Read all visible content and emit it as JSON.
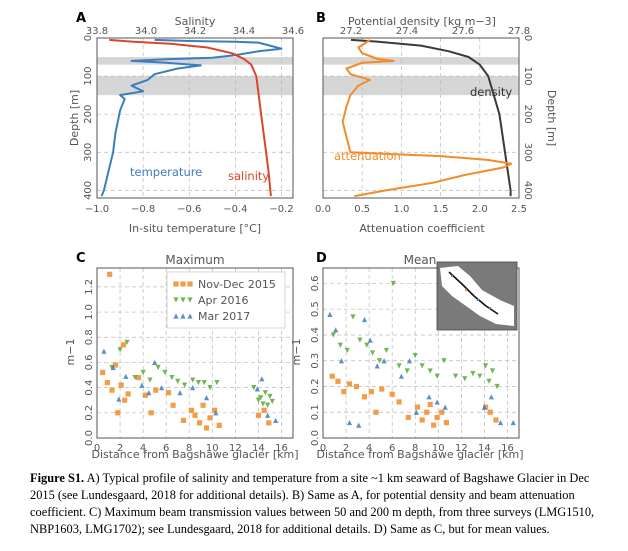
{
  "caption": {
    "label": "Figure S1.",
    "text": "A) Typical profile of salinity and temperature from a site ~1 km seaward of Bagshawe Glacier in Dec 2015 (see Lundesgaard, 2018 for additional details). B) Same as A, for potential density and beam attenuation coefficient. C) Maximum beam transmission values between 50 and 200 m depth, from three surveys (LMG1510, NBP1603, LMG1702); see Lundesgaard, 2018 for additional details. D) Same as C, but for mean values."
  },
  "colors": {
    "temperature": "#3b7dbf",
    "salinity": "#d9462b",
    "density": "#3a3a3a",
    "attenuation": "#f28c28",
    "nov_dec_2015": "#f28c28",
    "apr_2016": "#5aa832",
    "mar_2017": "#3f7cc4",
    "band": "#d6d6d6",
    "axis_gray": "#555555"
  },
  "chart_data": [
    {
      "id": "A",
      "panel_label": "A",
      "type": "line",
      "title": "",
      "top_axis_label": "Salinity",
      "top_ticks": [
        "33.8",
        "34.0",
        "34.2",
        "34.4",
        "34.6"
      ],
      "top_range": [
        33.8,
        34.6
      ],
      "bottom_axis_label": "In-situ temperature [°C]",
      "bottom_ticks": [
        "−1.0",
        "−0.8",
        "−0.6",
        "−0.4",
        "−0.2"
      ],
      "bottom_range": [
        -1.0,
        -0.15
      ],
      "ylabel": "Depth [m]",
      "y_ticks": [
        "0",
        "100",
        "200",
        "300",
        "400"
      ],
      "ylim": [
        0,
        420
      ],
      "shaded_bands": [
        [
          50,
          70
        ],
        [
          100,
          150
        ]
      ],
      "series": [
        {
          "name": "temperature",
          "axis": "bottom",
          "points": [
            [
              -0.75,
              5
            ],
            [
              -0.6,
              8
            ],
            [
              -0.4,
              10
            ],
            [
              -0.3,
              12
            ],
            [
              -0.25,
              20
            ],
            [
              -0.2,
              28
            ],
            [
              -0.3,
              35
            ],
            [
              -0.4,
              45
            ],
            [
              -0.5,
              52
            ],
            [
              -0.7,
              56
            ],
            [
              -0.85,
              60
            ],
            [
              -0.7,
              65
            ],
            [
              -0.55,
              72
            ],
            [
              -0.65,
              80
            ],
            [
              -0.75,
              95
            ],
            [
              -0.78,
              110
            ],
            [
              -0.85,
              125
            ],
            [
              -0.8,
              140
            ],
            [
              -0.9,
              150
            ],
            [
              -0.88,
              160
            ],
            [
              -0.9,
              190
            ],
            [
              -0.92,
              250
            ],
            [
              -0.93,
              300
            ],
            [
              -0.95,
              350
            ],
            [
              -0.97,
              400
            ],
            [
              -0.98,
              415
            ]
          ]
        },
        {
          "name": "salinity",
          "axis": "top",
          "points": [
            [
              33.85,
              5
            ],
            [
              33.95,
              10
            ],
            [
              34.1,
              15
            ],
            [
              34.25,
              25
            ],
            [
              34.35,
              40
            ],
            [
              34.4,
              55
            ],
            [
              34.43,
              70
            ],
            [
              34.45,
              100
            ],
            [
              34.46,
              150
            ],
            [
              34.47,
              200
            ],
            [
              34.48,
              250
            ],
            [
              34.49,
              300
            ],
            [
              34.5,
              350
            ],
            [
              34.51,
              415
            ]
          ]
        }
      ],
      "annotations": [
        "temperature",
        "salinity"
      ]
    },
    {
      "id": "B",
      "panel_label": "B",
      "type": "line",
      "title": "",
      "top_axis_label": "Potential density [kg m−3]",
      "top_ticks": [
        "27.2",
        "27.4",
        "27.6",
        "27.8"
      ],
      "top_range": [
        27.1,
        27.8
      ],
      "bottom_axis_label": "Attenuation coefficient",
      "bottom_ticks": [
        "0.0",
        "0.5",
        "1.0",
        "1.5",
        "2.0",
        "2.5"
      ],
      "bottom_range": [
        0.0,
        2.5
      ],
      "ylabel_right": "Depth [m]",
      "y_ticks": [
        "0",
        "100",
        "200",
        "300",
        "400"
      ],
      "ylim": [
        0,
        420
      ],
      "shaded_bands": [
        [
          50,
          70
        ],
        [
          100,
          150
        ]
      ],
      "series": [
        {
          "name": "density",
          "axis": "top",
          "points": [
            [
              27.2,
              5
            ],
            [
              27.3,
              10
            ],
            [
              27.45,
              20
            ],
            [
              27.55,
              35
            ],
            [
              27.62,
              50
            ],
            [
              27.66,
              70
            ],
            [
              27.69,
              100
            ],
            [
              27.71,
              150
            ],
            [
              27.73,
              200
            ],
            [
              27.74,
              250
            ],
            [
              27.75,
              300
            ],
            [
              27.76,
              350
            ],
            [
              27.77,
              400
            ],
            [
              27.77,
              415
            ]
          ]
        },
        {
          "name": "attenuation",
          "axis": "bottom",
          "points": [
            [
              0.6,
              5
            ],
            [
              0.45,
              25
            ],
            [
              0.5,
              40
            ],
            [
              0.7,
              55
            ],
            [
              0.9,
              60
            ],
            [
              0.5,
              65
            ],
            [
              0.3,
              80
            ],
            [
              0.35,
              95
            ],
            [
              0.6,
              110
            ],
            [
              0.45,
              125
            ],
            [
              0.35,
              150
            ],
            [
              0.3,
              180
            ],
            [
              0.25,
              220
            ],
            [
              0.3,
              260
            ],
            [
              0.35,
              300
            ],
            [
              1.5,
              310
            ],
            [
              2.1,
              320
            ],
            [
              2.4,
              330
            ],
            [
              2.3,
              340
            ],
            [
              1.8,
              360
            ],
            [
              1.4,
              380
            ],
            [
              0.8,
              400
            ],
            [
              0.4,
              415
            ]
          ]
        }
      ],
      "annotations": [
        "density",
        "attenuation"
      ]
    },
    {
      "id": "C",
      "panel_label": "C",
      "type": "scatter",
      "title": "Maximum",
      "xlabel": "Distance from Bagshawe glacier [km]",
      "ylabel": "m−1",
      "x_ticks": [
        "0",
        "2",
        "4",
        "6",
        "8",
        "10",
        "12",
        "14",
        "16"
      ],
      "xlim": [
        0,
        17
      ],
      "y_ticks": [
        "0.0",
        "0.2",
        "0.4",
        "0.6",
        "0.8",
        "1.0",
        "1.2"
      ],
      "ylim": [
        0,
        1.35
      ],
      "legend": {
        "placement": "top-right",
        "entries": [
          "Nov-Dec 2015",
          "Apr 2016",
          "Mar 2017"
        ]
      },
      "series": [
        {
          "name": "Nov-Dec 2015",
          "marker": "square",
          "points": [
            [
              1.1,
              1.3
            ],
            [
              0.5,
              0.52
            ],
            [
              0.9,
              0.44
            ],
            [
              1.3,
              0.38
            ],
            [
              1.6,
              0.58
            ],
            [
              2.1,
              0.42
            ],
            [
              2.3,
              0.74
            ],
            [
              2.7,
              0.35
            ],
            [
              1.8,
              0.2
            ],
            [
              2.4,
              0.3
            ],
            [
              3.6,
              0.48
            ],
            [
              4.2,
              0.34
            ],
            [
              4.7,
              0.2
            ],
            [
              5.1,
              0.38
            ],
            [
              6.2,
              0.36
            ],
            [
              6.6,
              0.26
            ],
            [
              7.5,
              0.14
            ],
            [
              8.2,
              0.22
            ],
            [
              8.5,
              0.18
            ],
            [
              8.9,
              0.12
            ],
            [
              9.2,
              0.26
            ],
            [
              9.5,
              0.08
            ],
            [
              9.8,
              0.16
            ],
            [
              10.2,
              0.22
            ],
            [
              10.6,
              0.1
            ],
            [
              14.0,
              0.18
            ],
            [
              14.5,
              0.22
            ],
            [
              14.9,
              0.12
            ]
          ]
        },
        {
          "name": "Apr 2016",
          "marker": "triangle-down",
          "points": [
            [
              1.3,
              0.56
            ],
            [
              2.0,
              0.7
            ],
            [
              2.6,
              0.76
            ],
            [
              3.3,
              0.48
            ],
            [
              4.0,
              0.52
            ],
            [
              4.6,
              0.46
            ],
            [
              5.3,
              0.56
            ],
            [
              5.9,
              0.52
            ],
            [
              6.5,
              0.48
            ],
            [
              7.0,
              0.45
            ],
            [
              7.6,
              0.42
            ],
            [
              8.3,
              0.46
            ],
            [
              8.8,
              0.44
            ],
            [
              9.3,
              0.44
            ],
            [
              9.8,
              0.4
            ],
            [
              10.4,
              0.44
            ],
            [
              13.6,
              0.4
            ],
            [
              14.0,
              0.3
            ],
            [
              14.2,
              0.32
            ],
            [
              14.4,
              0.27
            ],
            [
              14.6,
              0.36
            ],
            [
              14.8,
              0.26
            ],
            [
              15.0,
              0.33
            ],
            [
              15.2,
              0.29
            ]
          ]
        },
        {
          "name": "Mar 2017",
          "marker": "triangle-up",
          "points": [
            [
              0.6,
              0.69
            ],
            [
              1.4,
              0.56
            ],
            [
              1.9,
              0.31
            ],
            [
              2.5,
              0.49
            ],
            [
              3.9,
              0.42
            ],
            [
              4.5,
              0.36
            ],
            [
              5.0,
              0.6
            ],
            [
              5.6,
              0.4
            ],
            [
              7.2,
              0.36
            ],
            [
              8.3,
              0.4
            ],
            [
              9.5,
              0.32
            ],
            [
              10.3,
              0.2
            ],
            [
              13.9,
              0.39
            ],
            [
              14.3,
              0.47
            ],
            [
              14.8,
              0.18
            ],
            [
              15.5,
              0.14
            ]
          ]
        }
      ]
    },
    {
      "id": "D",
      "panel_label": "D",
      "type": "scatter",
      "title": "Mean",
      "xlabel": "Distance from Bagshawe glacier [km]",
      "ylabel": "m−1",
      "x_ticks": [
        "0",
        "2",
        "4",
        "6",
        "8",
        "10",
        "12",
        "14",
        "16"
      ],
      "xlim": [
        0,
        17
      ],
      "y_ticks": [
        "0.0",
        "0.1",
        "0.2",
        "0.3",
        "0.4",
        "0.5",
        "0.6"
      ],
      "ylim": [
        0,
        0.66
      ],
      "inset": "map",
      "series": [
        {
          "name": "Nov-Dec 2015",
          "marker": "square",
          "points": [
            [
              0.8,
              0.24
            ],
            [
              1.3,
              0.22
            ],
            [
              1.8,
              0.18
            ],
            [
              2.3,
              0.21
            ],
            [
              2.9,
              0.2
            ],
            [
              3.6,
              0.16
            ],
            [
              4.2,
              0.18
            ],
            [
              4.6,
              0.1
            ],
            [
              5.1,
              0.19
            ],
            [
              6.0,
              0.17
            ],
            [
              6.6,
              0.14
            ],
            [
              7.4,
              0.08
            ],
            [
              8.2,
              0.12
            ],
            [
              8.6,
              0.07
            ],
            [
              9.0,
              0.1
            ],
            [
              9.3,
              0.13
            ],
            [
              9.6,
              0.05
            ],
            [
              9.9,
              0.08
            ],
            [
              10.3,
              0.1
            ],
            [
              10.7,
              0.06
            ],
            [
              14.1,
              0.12
            ],
            [
              14.5,
              0.1
            ],
            [
              15.0,
              0.07
            ]
          ]
        },
        {
          "name": "Apr 2016",
          "marker": "triangle-down",
          "points": [
            [
              0.9,
              0.4
            ],
            [
              1.5,
              0.36
            ],
            [
              2.1,
              0.34
            ],
            [
              2.6,
              0.47
            ],
            [
              3.2,
              0.38
            ],
            [
              3.8,
              0.36
            ],
            [
              4.3,
              0.33
            ],
            [
              4.9,
              0.3
            ],
            [
              5.5,
              0.34
            ],
            [
              6.1,
              0.6
            ],
            [
              6.6,
              0.28
            ],
            [
              7.3,
              0.26
            ],
            [
              8.0,
              0.32
            ],
            [
              8.6,
              0.28
            ],
            [
              9.3,
              0.26
            ],
            [
              9.9,
              0.24
            ],
            [
              10.5,
              0.3
            ],
            [
              11.5,
              0.24
            ],
            [
              12.3,
              0.23
            ],
            [
              13.0,
              0.25
            ],
            [
              13.6,
              0.24
            ],
            [
              14.1,
              0.28
            ],
            [
              14.4,
              0.22
            ],
            [
              14.7,
              0.26
            ],
            [
              15.1,
              0.2
            ]
          ]
        },
        {
          "name": "Mar 2017",
          "marker": "triangle-up",
          "points": [
            [
              0.6,
              0.48
            ],
            [
              1.1,
              0.42
            ],
            [
              1.6,
              0.3
            ],
            [
              2.3,
              0.06
            ],
            [
              3.1,
              0.05
            ],
            [
              3.6,
              0.46
            ],
            [
              4.1,
              0.38
            ],
            [
              4.7,
              0.28
            ],
            [
              5.3,
              0.3
            ],
            [
              6.8,
              0.24
            ],
            [
              7.5,
              0.3
            ],
            [
              8.1,
              0.1
            ],
            [
              9.2,
              0.16
            ],
            [
              9.9,
              0.14
            ],
            [
              10.6,
              0.12
            ],
            [
              14.0,
              0.12
            ],
            [
              14.6,
              0.16
            ],
            [
              15.4,
              0.06
            ],
            [
              16.5,
              0.06
            ]
          ]
        }
      ]
    }
  ]
}
